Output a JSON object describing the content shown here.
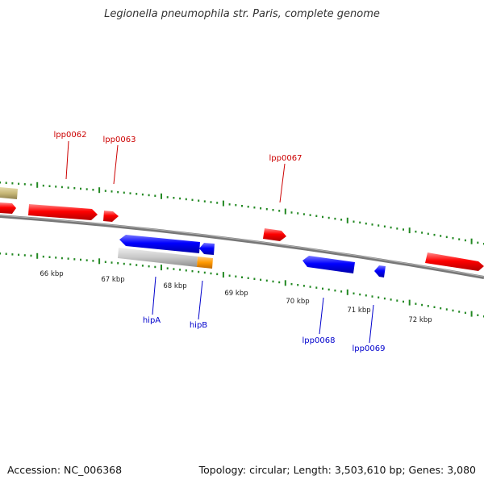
{
  "title": "Legionella pneumophila str. Paris, complete genome",
  "footer": {
    "accession": "Accession: NC_006368",
    "summary": "Topology: circular; Length: 3,503,610 bp; Genes: 3,080"
  },
  "colors": {
    "forward_gene": "#ff0000",
    "reverse_gene": "#0000ff",
    "forward_label": "#cc0000",
    "reverse_label": "#0000cc",
    "pseudo_gene": "#c8c8c8",
    "partial_gene": "#ff9900",
    "other_feature": "#c8b878",
    "backbone": "#777777",
    "tick": "#228822"
  },
  "ticks": [
    "66 kbp",
    "67 kbp",
    "68 kbp",
    "69 kbp",
    "70 kbp",
    "71 kbp",
    "72 kbp"
  ],
  "gene_labels": {
    "lpp0062": "lpp0062",
    "lpp0063": "lpp0063",
    "lpp0067": "lpp0067",
    "hipA": "hipA",
    "hipB": "hipB",
    "lpp0068": "lpp0068",
    "lpp0069": "lpp0069"
  }
}
